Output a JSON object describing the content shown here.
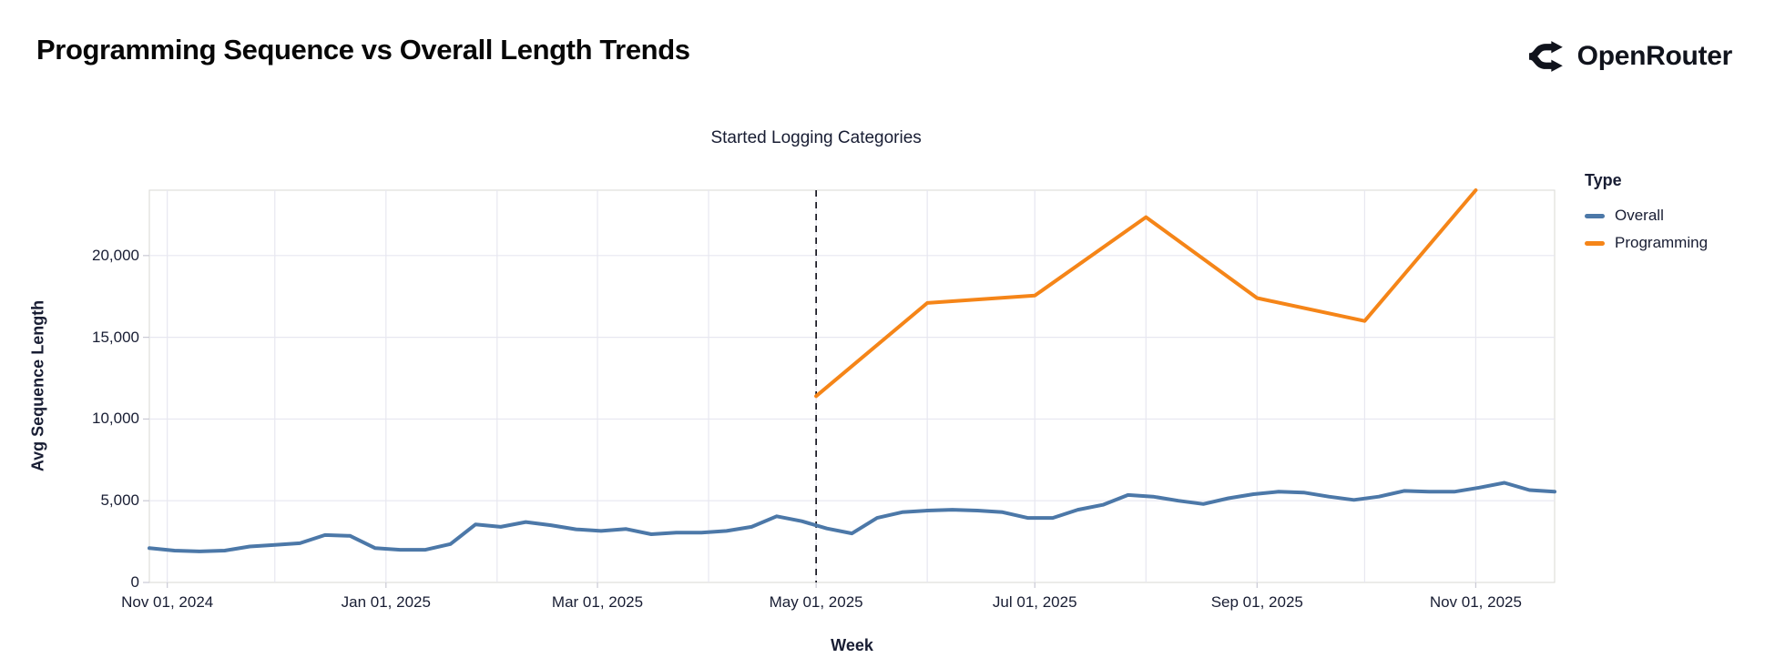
{
  "header": {
    "title": "Programming Sequence vs Overall Length Trends",
    "brand": "OpenRouter"
  },
  "chart_data": {
    "type": "line",
    "title": "Programming Sequence vs Overall Length Trends",
    "xlabel": "Week",
    "ylabel": "Avg Sequence Length",
    "x_domain": [
      "2024-10-27",
      "2025-11-23"
    ],
    "ylim": [
      0,
      24000
    ],
    "grid": true,
    "background": "#ffffff",
    "grid_color": "#e7e7f0",
    "border_color": "#dededa",
    "text_color": "#181d33",
    "y_ticks": [
      {
        "value": 0,
        "label": "0"
      },
      {
        "value": 5000,
        "label": "5,000"
      },
      {
        "value": 10000,
        "label": "10,000"
      },
      {
        "value": 15000,
        "label": "15,000"
      },
      {
        "value": 20000,
        "label": "20,000"
      }
    ],
    "x_ticks": [
      {
        "date": "2024-11-01",
        "label": "Nov 01, 2024"
      },
      {
        "date": "2025-01-01",
        "label": "Jan 01, 2025"
      },
      {
        "date": "2025-03-01",
        "label": "Mar 01, 2025"
      },
      {
        "date": "2025-05-01",
        "label": "May 01, 2025"
      },
      {
        "date": "2025-07-01",
        "label": "Jul 01, 2025"
      },
      {
        "date": "2025-09-01",
        "label": "Sep 01, 2025"
      },
      {
        "date": "2025-11-01",
        "label": "Nov 01, 2025"
      }
    ],
    "x_gridlines": [
      "2024-11-01",
      "2024-12-01",
      "2025-01-01",
      "2025-02-01",
      "2025-03-01",
      "2025-04-01",
      "2025-05-01",
      "2025-06-01",
      "2025-07-01",
      "2025-08-01",
      "2025-09-01",
      "2025-10-01",
      "2025-11-01"
    ],
    "annotation": {
      "text": "Started Logging Categories",
      "x": "2025-05-01",
      "line_style": "dashed",
      "line_color": "#16161f"
    },
    "legend": {
      "title": "Type",
      "position": "right",
      "items": [
        {
          "label": "Overall",
          "color": "#4c78a8"
        },
        {
          "label": "Programming",
          "color": "#f58518"
        }
      ]
    },
    "series": [
      {
        "name": "Overall",
        "color": "#4c78a8",
        "x": [
          "2024-10-27",
          "2024-11-03",
          "2024-11-10",
          "2024-11-17",
          "2024-11-24",
          "2024-12-01",
          "2024-12-08",
          "2024-12-15",
          "2024-12-22",
          "2024-12-29",
          "2025-01-05",
          "2025-01-12",
          "2025-01-19",
          "2025-01-26",
          "2025-02-02",
          "2025-02-09",
          "2025-02-16",
          "2025-02-23",
          "2025-03-02",
          "2025-03-09",
          "2025-03-16",
          "2025-03-23",
          "2025-03-30",
          "2025-04-06",
          "2025-04-13",
          "2025-04-20",
          "2025-04-27",
          "2025-05-04",
          "2025-05-11",
          "2025-05-18",
          "2025-05-25",
          "2025-06-01",
          "2025-06-08",
          "2025-06-15",
          "2025-06-22",
          "2025-06-29",
          "2025-07-06",
          "2025-07-13",
          "2025-07-20",
          "2025-07-27",
          "2025-08-03",
          "2025-08-10",
          "2025-08-17",
          "2025-08-24",
          "2025-08-31",
          "2025-09-07",
          "2025-09-14",
          "2025-09-21",
          "2025-09-28",
          "2025-10-05",
          "2025-10-12",
          "2025-10-19",
          "2025-10-26",
          "2025-11-02",
          "2025-11-09",
          "2025-11-16",
          "2025-11-23"
        ],
        "values": [
          2100,
          1950,
          1900,
          1950,
          2200,
          2300,
          2400,
          2900,
          2850,
          2100,
          2000,
          2000,
          2350,
          3550,
          3400,
          3700,
          3500,
          3250,
          3150,
          3270,
          2950,
          3050,
          3050,
          3150,
          3400,
          4050,
          3750,
          3300,
          3000,
          3950,
          4300,
          4400,
          4450,
          4400,
          4300,
          3950,
          3950,
          4450,
          4750,
          5350,
          5250,
          5000,
          4800,
          5150,
          5400,
          5550,
          5500,
          5250,
          5050,
          5250,
          5600,
          5550,
          5550,
          5800,
          6100,
          5650,
          5550
        ]
      },
      {
        "name": "Programming",
        "color": "#f58518",
        "x": [
          "2025-05-01",
          "2025-06-01",
          "2025-07-01",
          "2025-08-01",
          "2025-09-01",
          "2025-10-01",
          "2025-11-01"
        ],
        "values": [
          11400,
          17100,
          17550,
          22350,
          17400,
          16000,
          24000
        ]
      }
    ]
  }
}
